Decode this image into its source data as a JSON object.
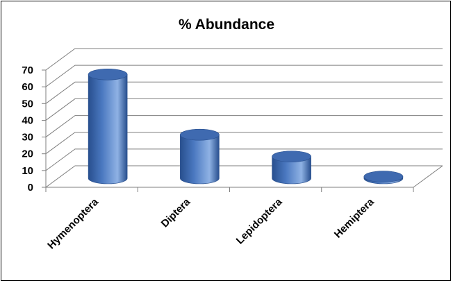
{
  "chart_data": {
    "type": "bar",
    "style": "3d-cylinder",
    "title": "% Abundance",
    "xlabel": "",
    "ylabel": "",
    "categories": [
      "Hymenoptera",
      "Diptera",
      "Lepidoptera",
      "Hemiptera"
    ],
    "values": [
      62,
      26,
      13,
      1
    ],
    "ylim": [
      0,
      70
    ],
    "yticks": [
      "0",
      "10",
      "20",
      "30",
      "40",
      "50",
      "60",
      "70"
    ],
    "grid": true,
    "legend": "none"
  },
  "colors": {
    "bar_main": "#4a78c0",
    "bar_dark": "#284f8e",
    "bar_light": "#8fb2e4",
    "bar_top": "#3f6ab0",
    "grid": "#7f7f7f",
    "text": "#000000",
    "border": "#000000"
  }
}
